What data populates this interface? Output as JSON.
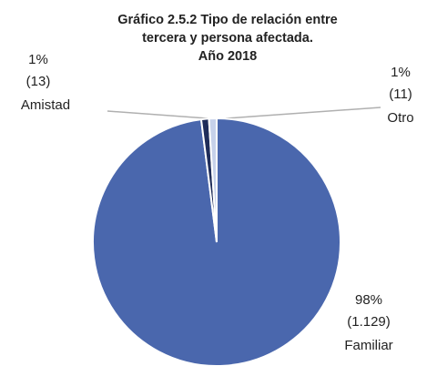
{
  "chart_data": {
    "type": "pie",
    "title": [
      "Gráfico 2.5.2 Tipo de relación entre",
      "tercera y persona afectada.",
      "Año 2018"
    ],
    "categories": [
      "Familiar",
      "Amistad",
      "Otro"
    ],
    "values": [
      98,
      1,
      1
    ],
    "value_labels": [
      "98%",
      "1%",
      "1%"
    ],
    "counts": [
      1129,
      13,
      11
    ],
    "count_labels": [
      "(1.129)",
      "(13)",
      "(11)"
    ],
    "colors": [
      "#4a67ad",
      "#1f2d5a",
      "#c6d1ea"
    ]
  }
}
